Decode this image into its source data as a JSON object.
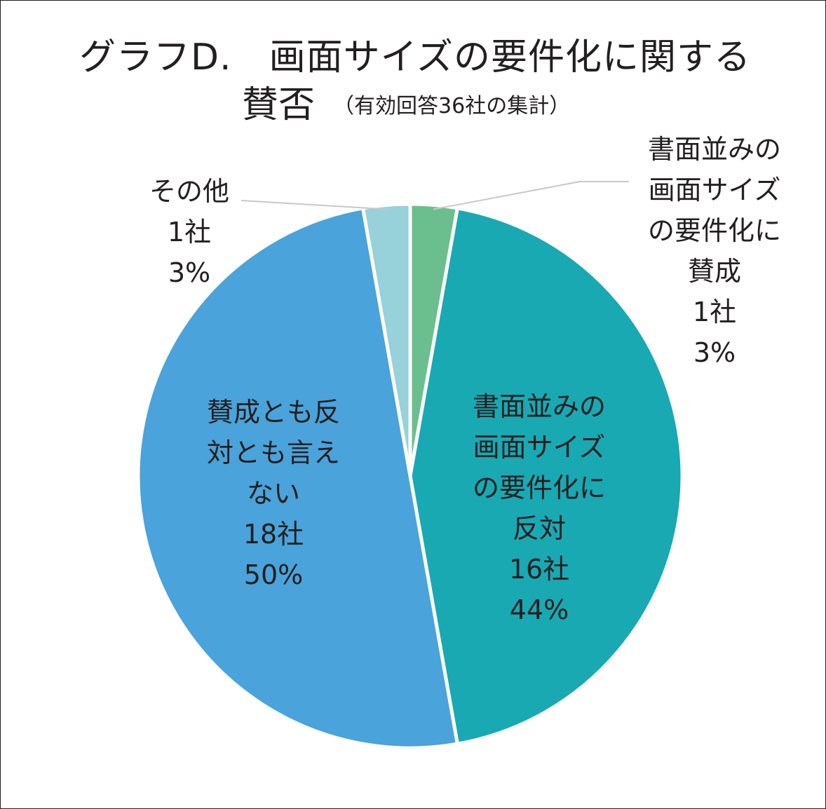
{
  "chart_data": {
    "type": "pie",
    "title": "グラフD.　画面サイズの要件化に関する",
    "title_line2": "賛否",
    "subtitle": "（有効回答36社の集計）",
    "unit": "社",
    "total": 36,
    "start": "top, clockwise",
    "slices": [
      {
        "label_lines": [
          "書面並みの",
          "画面サイズ",
          "の要件化に",
          "賛成"
        ],
        "count_text": "1社",
        "value": 1,
        "percent_text": "3%",
        "color": "#6bbf8e",
        "label_position": "outside-right"
      },
      {
        "label_lines": [
          "書面並みの",
          "画面サイズ",
          "の要件化に",
          "反対"
        ],
        "count_text": "16社",
        "value": 16,
        "percent_text": "44%",
        "color": "#18a9b3",
        "label_position": "inside"
      },
      {
        "label_lines": [
          "賛成とも反",
          "対とも言え",
          "ない"
        ],
        "count_text": "18社",
        "value": 18,
        "percent_text": "50%",
        "color": "#4aa3da",
        "label_position": "inside"
      },
      {
        "label_lines": [
          "その他"
        ],
        "count_text": "1社",
        "value": 1,
        "percent_text": "3%",
        "color": "#97d1da",
        "label_position": "outside-left"
      }
    ],
    "leader_line_color": "#c8c8c8",
    "slice_border_color": "#ffffff"
  }
}
